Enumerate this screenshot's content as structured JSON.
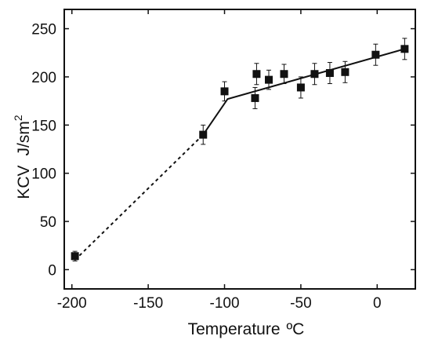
{
  "chart_data": {
    "type": "scatter",
    "xlabel": "Temperature",
    "xlabel_unit": "ºC",
    "ylabel": "KCV",
    "ylabel_unit_base": "J/sm",
    "ylabel_unit_exp": "2",
    "xlim": [
      -205,
      25
    ],
    "ylim": [
      -20,
      270
    ],
    "x_ticks": [
      -200,
      -150,
      -100,
      -50,
      0
    ],
    "y_ticks": [
      0,
      50,
      100,
      150,
      200,
      250
    ],
    "grid": false,
    "legend": "none",
    "points": [
      {
        "x": -198,
        "y": 14,
        "err": 5
      },
      {
        "x": -114,
        "y": 140,
        "err": 10
      },
      {
        "x": -100,
        "y": 185,
        "err": 10
      },
      {
        "x": -80,
        "y": 178,
        "err": 11
      },
      {
        "x": -79,
        "y": 203,
        "err": 11
      },
      {
        "x": -71,
        "y": 197,
        "err": 10
      },
      {
        "x": -61,
        "y": 203,
        "err": 10
      },
      {
        "x": -50,
        "y": 189,
        "err": 11
      },
      {
        "x": -41,
        "y": 203,
        "err": 11
      },
      {
        "x": -31,
        "y": 204,
        "err": 11
      },
      {
        "x": -21,
        "y": 205,
        "err": 11
      },
      {
        "x": -1,
        "y": 223,
        "err": 11
      },
      {
        "x": 18,
        "y": 229,
        "err": 11
      }
    ],
    "fit_lines": [
      {
        "style": "dashed",
        "points": [
          [
            -198,
            10
          ],
          [
            -114,
            140
          ]
        ]
      },
      {
        "style": "solid",
        "points": [
          [
            -114,
            140
          ],
          [
            -98,
            177
          ],
          [
            18,
            229
          ]
        ]
      }
    ],
    "colors": {
      "marker": "#111111",
      "line": "#111111",
      "axis": "#111111"
    }
  }
}
